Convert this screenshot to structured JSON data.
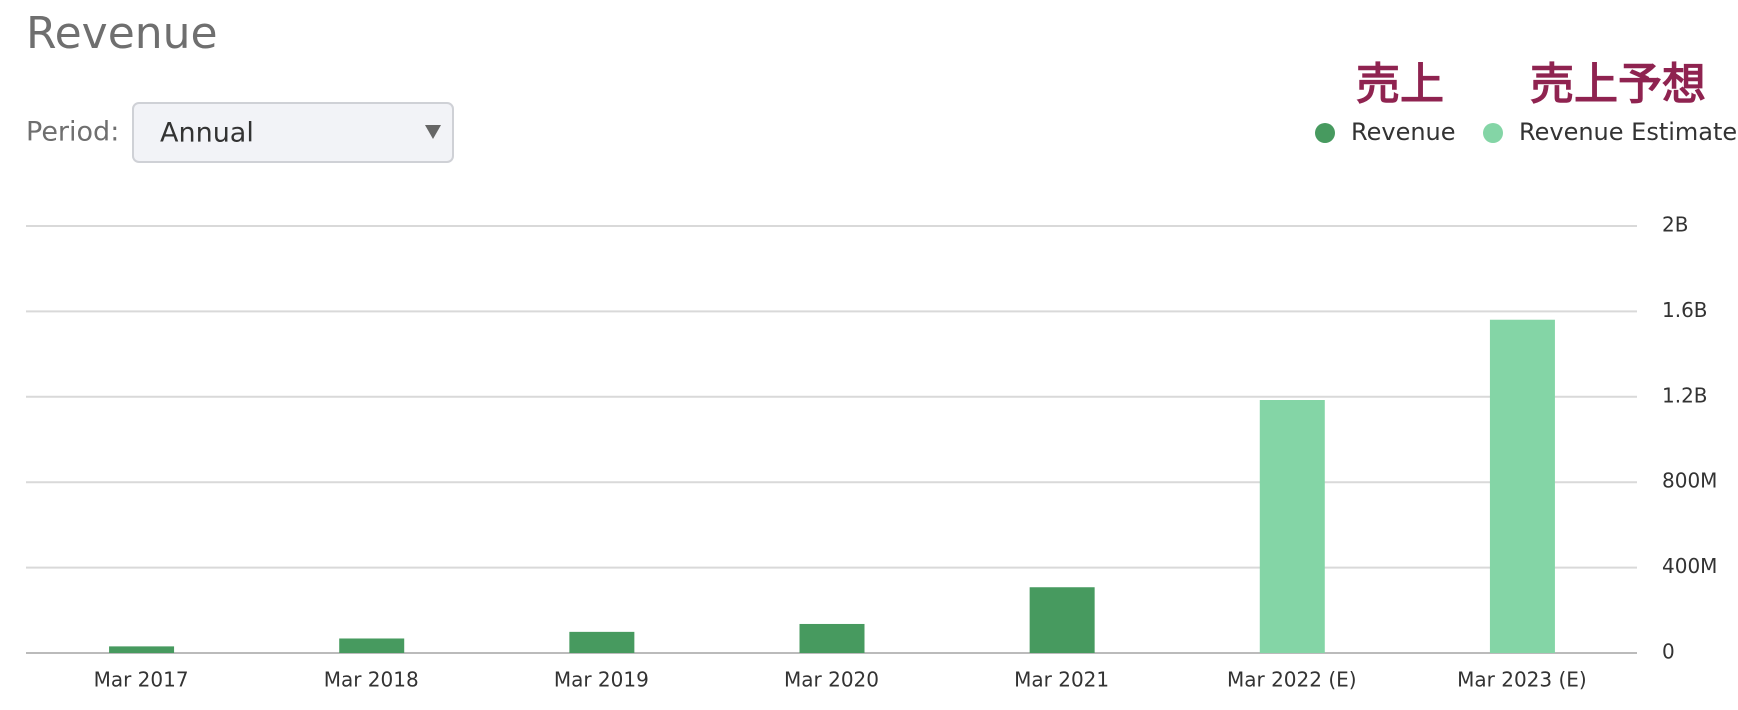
{
  "chart_data": {
    "type": "bar",
    "title": "Revenue",
    "period_label": "Period:",
    "period_value": "Annual",
    "annotations": [
      {
        "text": "売上",
        "color": "#8f2350"
      },
      {
        "text": "売上予想",
        "color": "#8f2350"
      }
    ],
    "categories": [
      "Mar 2017",
      "Mar 2018",
      "Mar 2019",
      "Mar 2020",
      "Mar 2021",
      "Mar 2022 (E)",
      "Mar 2023 (E)"
    ],
    "series": [
      {
        "name": "Revenue",
        "color": "#479a5f",
        "values": [
          31000000,
          68000000,
          99000000,
          136000000,
          308000000,
          null,
          null
        ]
      },
      {
        "name": "Revenue Estimate",
        "color": "#84d5a6",
        "values": [
          null,
          null,
          null,
          null,
          null,
          1185000000,
          1561000000
        ]
      }
    ],
    "ylim": [
      0,
      2000000000
    ],
    "yticks": [
      {
        "value": 0,
        "label": "0"
      },
      {
        "value": 400000000,
        "label": "400M"
      },
      {
        "value": 800000000,
        "label": "800M"
      },
      {
        "value": 1200000000,
        "label": "1.2B"
      },
      {
        "value": 1600000000,
        "label": "1.6B"
      },
      {
        "value": 2000000000,
        "label": "2B"
      }
    ],
    "grid": true
  }
}
